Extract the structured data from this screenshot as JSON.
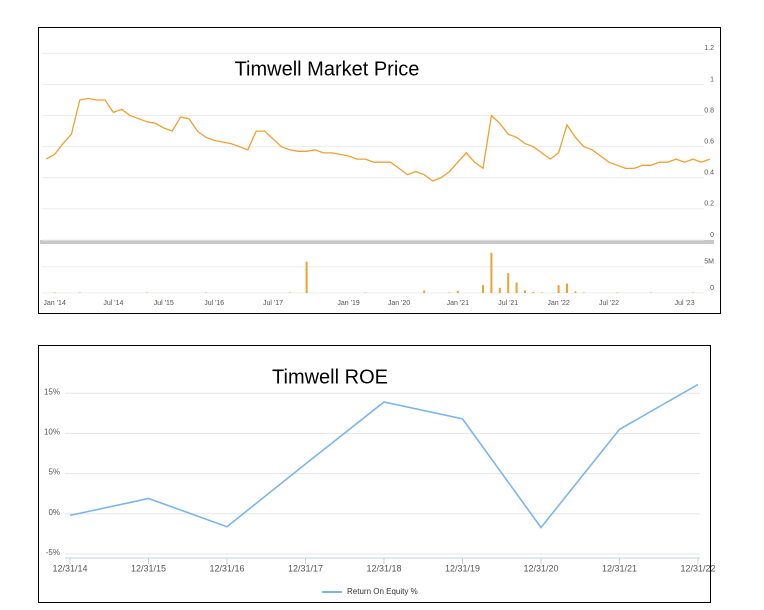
{
  "chart_data": [
    {
      "type": "line",
      "title": "Timwell Market Price",
      "categories": [
        null,
        "Jan '14",
        null,
        null,
        null,
        null,
        null,
        null,
        "Jul '14",
        null,
        null,
        null,
        null,
        null,
        "Jul '15",
        null,
        null,
        null,
        null,
        null,
        "Jul '16",
        null,
        null,
        null,
        null,
        null,
        null,
        "Jul '17",
        null,
        null,
        null,
        null,
        null,
        null,
        null,
        null,
        "Jan '19",
        null,
        null,
        null,
        null,
        null,
        "Jan '20",
        null,
        null,
        null,
        null,
        null,
        null,
        "Jan '21",
        null,
        null,
        null,
        null,
        null,
        "Jul '21",
        null,
        null,
        null,
        null,
        null,
        "Jan '22",
        null,
        null,
        null,
        null,
        null,
        "Jul '22",
        null,
        null,
        null,
        null,
        null,
        null,
        null,
        null,
        "Jul '23",
        null,
        null,
        null
      ],
      "series": [
        {
          "color": "#f0a030",
          "values": [
            0.52,
            0.55,
            0.62,
            0.68,
            0.9,
            0.91,
            0.9,
            0.9,
            0.82,
            0.84,
            0.8,
            0.78,
            0.76,
            0.75,
            0.72,
            0.7,
            0.79,
            0.78,
            0.7,
            0.66,
            0.64,
            0.63,
            0.62,
            0.6,
            0.58,
            0.7,
            0.7,
            0.65,
            0.6,
            0.58,
            0.57,
            0.57,
            0.58,
            0.56,
            0.56,
            0.55,
            0.54,
            0.52,
            0.52,
            0.5,
            0.5,
            0.5,
            0.46,
            0.42,
            0.44,
            0.42,
            0.38,
            0.4,
            0.44,
            0.5,
            0.56,
            0.5,
            0.46,
            0.8,
            0.75,
            0.68,
            0.66,
            0.62,
            0.6,
            0.56,
            0.52,
            0.56,
            0.74,
            0.66,
            0.6,
            0.58,
            0.54,
            0.5,
            0.48,
            0.46,
            0.46,
            0.48,
            0.48,
            0.5,
            0.5,
            0.52,
            0.5,
            0.52,
            0.5,
            0.52
          ]
        },
        {
          "color": "#f0a030",
          "axis": "y2",
          "type": "bar",
          "values": [
            0,
            100000,
            0,
            0,
            100000,
            0,
            0,
            0,
            0,
            0,
            0,
            0,
            100000,
            0,
            0,
            0,
            0,
            0,
            0,
            100000,
            0,
            0,
            0,
            0,
            0,
            0,
            0,
            0,
            0,
            100000,
            0,
            6000000,
            0,
            0,
            0,
            0,
            0,
            0,
            100000,
            0,
            0,
            0,
            0,
            0,
            0,
            500000,
            0,
            0,
            100000,
            400000,
            0,
            0,
            1500000,
            7700000,
            1000000,
            3800000,
            2000000,
            500000,
            200000,
            100000,
            0,
            1500000,
            1800000,
            300000,
            100000,
            0,
            0,
            0,
            100000,
            0,
            0,
            0,
            100000,
            0,
            0,
            0,
            0,
            100000,
            0,
            0
          ]
        }
      ],
      "ylim": [
        0,
        1.35
      ],
      "yticks": [
        0,
        0.2,
        0.4,
        0.6,
        0.8,
        1,
        1.2
      ],
      "y2lim": [
        0,
        9000000
      ],
      "y2ticks": [
        0,
        {
          "value": 5000000,
          "label": "5M"
        }
      ],
      "grid": true
    },
    {
      "type": "line",
      "title": "Timwell ROE",
      "categories": [
        "12/31/14",
        "12/31/15",
        "12/31/16",
        "12/31/17",
        "12/31/18",
        "12/31/19",
        "12/31/20",
        "12/31/21",
        "12/31/22"
      ],
      "series": [
        {
          "name": "Return On Equity %",
          "color": "#7cb5ec",
          "values": [
            -0.2,
            1.9,
            -1.6,
            6.2,
            13.9,
            11.8,
            -1.7,
            10.5,
            16.1
          ]
        }
      ],
      "ylim": [
        -5,
        20
      ],
      "yticks": [
        {
          "value": -5,
          "label": "-5%"
        },
        {
          "value": 0,
          "label": "0%"
        },
        {
          "value": 5,
          "label": "5%"
        },
        {
          "value": 10,
          "label": "10%"
        },
        {
          "value": 15,
          "label": "15%"
        }
      ],
      "grid": true,
      "legend": "bottom"
    }
  ]
}
